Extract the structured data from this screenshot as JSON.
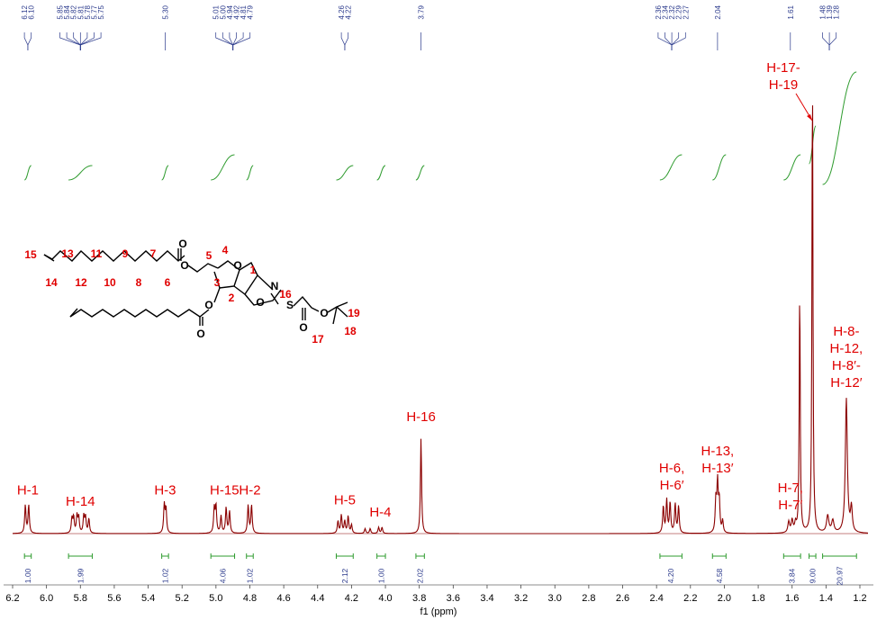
{
  "chart_data": {
    "type": "line",
    "title": "",
    "xlabel": "f1 (ppm)",
    "ylabel": "",
    "xlim": [
      6.2,
      1.17
    ],
    "x_ticks": [
      "6.2",
      "6.0",
      "5.8",
      "5.6",
      "5.4",
      "5.2",
      "5.0",
      "4.8",
      "4.6",
      "4.4",
      "4.2",
      "4.0",
      "3.8",
      "3.6",
      "3.4",
      "3.2",
      "3.0",
      "2.8",
      "2.6",
      "2.4",
      "2.2",
      "2.0",
      "1.8",
      "1.6",
      "1.4",
      "1.2"
    ],
    "x_tick_labels": [
      "6.2",
      "6.0",
      "5.8",
      "5.6",
      "5.4",
      "5.2",
      "5.0",
      "4.8",
      "4.6",
      "4.4",
      "4.2",
      "4.0",
      "3.8",
      "3.6",
      "3.4",
      "3.2",
      "3.0",
      "2.8",
      "2.6",
      "2.4",
      "2.2",
      "2.0",
      "1.8",
      "1.6",
      "1.4",
      "1.2"
    ],
    "colors": {
      "spectrum": "#8b0000",
      "annotation": "#e00000",
      "integral": "#2e9b2e",
      "peak_label": "#2b3a8c"
    },
    "peak_values": [
      "6.12",
      "6.10",
      "5.85",
      "5.84",
      "5.82",
      "5.81",
      "5.78",
      "5.77",
      "5.75",
      "5.30",
      "5.01",
      "5.00",
      "4.94",
      "4.92",
      "4.81",
      "4.79",
      "4.26",
      "4.22",
      "3.79",
      "2.36",
      "2.34",
      "2.32",
      "2.29",
      "2.27",
      "2.04",
      "1.61",
      "1.48",
      "1.39",
      "1.28"
    ],
    "peak_label_groups": [
      {
        "ppm": 6.11,
        "labels": [
          "6.12",
          "6.10"
        ]
      },
      {
        "ppm": 5.8,
        "labels": [
          "5.85",
          "5.84",
          "5.82",
          "5.81",
          "5.78",
          "5.77",
          "5.75"
        ]
      },
      {
        "ppm": 5.3,
        "labels": [
          "5.30"
        ]
      },
      {
        "ppm": 4.9,
        "labels": [
          "5.01",
          "5.00",
          "4.94",
          "4.92",
          "4.81",
          "4.79"
        ]
      },
      {
        "ppm": 4.24,
        "labels": [
          "4.26",
          "4.22"
        ]
      },
      {
        "ppm": 3.79,
        "labels": [
          "3.79"
        ]
      },
      {
        "ppm": 2.31,
        "labels": [
          "2.36",
          "2.34",
          "2.32",
          "2.29",
          "2.27"
        ]
      },
      {
        "ppm": 2.04,
        "labels": [
          "2.04"
        ]
      },
      {
        "ppm": 1.61,
        "labels": [
          "1.61"
        ]
      },
      {
        "ppm": 1.38,
        "labels": [
          "1.48",
          "1.39",
          "1.28"
        ]
      }
    ],
    "integrals": [
      {
        "from": 6.13,
        "to": 6.09,
        "value": "1.00"
      },
      {
        "from": 5.87,
        "to": 5.73,
        "value": "1.99"
      },
      {
        "from": 5.32,
        "to": 5.28,
        "value": "1.02"
      },
      {
        "from": 5.03,
        "to": 4.89,
        "value": "4.06"
      },
      {
        "from": 4.82,
        "to": 4.78,
        "value": "1.02"
      },
      {
        "from": 4.29,
        "to": 4.19,
        "value": "2.12"
      },
      {
        "from": 4.05,
        "to": 4.0,
        "value": "1.00"
      },
      {
        "from": 3.82,
        "to": 3.77,
        "value": "2.02"
      },
      {
        "from": 2.38,
        "to": 2.25,
        "value": "4.20"
      },
      {
        "from": 2.07,
        "to": 1.99,
        "value": "4.58"
      },
      {
        "from": 1.65,
        "to": 1.55,
        "value": "3.84"
      },
      {
        "from": 1.5,
        "to": 1.46,
        "value": "9.00"
      },
      {
        "from": 1.42,
        "to": 1.22,
        "value": "20.97"
      }
    ],
    "peaks": [
      {
        "ppm": 6.125,
        "height": 0.23,
        "width": 0.0045
      },
      {
        "ppm": 6.105,
        "height": 0.23,
        "width": 0.0045
      },
      {
        "ppm": 5.85,
        "height": 0.12,
        "width": 0.0045
      },
      {
        "ppm": 5.84,
        "height": 0.13,
        "width": 0.0045
      },
      {
        "ppm": 5.82,
        "height": 0.14,
        "width": 0.0045
      },
      {
        "ppm": 5.81,
        "height": 0.13,
        "width": 0.0045
      },
      {
        "ppm": 5.78,
        "height": 0.14,
        "width": 0.0045
      },
      {
        "ppm": 5.77,
        "height": 0.13,
        "width": 0.0045
      },
      {
        "ppm": 5.75,
        "height": 0.12,
        "width": 0.0045
      },
      {
        "ppm": 5.305,
        "height": 0.23,
        "width": 0.0045
      },
      {
        "ppm": 5.295,
        "height": 0.2,
        "width": 0.0045
      },
      {
        "ppm": 5.01,
        "height": 0.2,
        "width": 0.0045
      },
      {
        "ppm": 5.0,
        "height": 0.22,
        "width": 0.0045
      },
      {
        "ppm": 4.97,
        "height": 0.14,
        "width": 0.0045
      },
      {
        "ppm": 4.94,
        "height": 0.21,
        "width": 0.0045
      },
      {
        "ppm": 4.92,
        "height": 0.18,
        "width": 0.0045
      },
      {
        "ppm": 4.81,
        "height": 0.23,
        "width": 0.0045
      },
      {
        "ppm": 4.79,
        "height": 0.23,
        "width": 0.0045
      },
      {
        "ppm": 4.28,
        "height": 0.1,
        "width": 0.0045
      },
      {
        "ppm": 4.26,
        "height": 0.15,
        "width": 0.0045
      },
      {
        "ppm": 4.24,
        "height": 0.1,
        "width": 0.0045
      },
      {
        "ppm": 4.22,
        "height": 0.14,
        "width": 0.0045
      },
      {
        "ppm": 4.2,
        "height": 0.07,
        "width": 0.0045
      },
      {
        "ppm": 4.12,
        "height": 0.04,
        "width": 0.0045
      },
      {
        "ppm": 4.09,
        "height": 0.04,
        "width": 0.0045
      },
      {
        "ppm": 4.04,
        "height": 0.05,
        "width": 0.0045
      },
      {
        "ppm": 4.02,
        "height": 0.05,
        "width": 0.0045
      },
      {
        "ppm": 3.79,
        "height": 0.78,
        "width": 0.004
      },
      {
        "ppm": 2.36,
        "height": 0.22,
        "width": 0.0045
      },
      {
        "ppm": 2.34,
        "height": 0.27,
        "width": 0.0045
      },
      {
        "ppm": 2.32,
        "height": 0.25,
        "width": 0.0045
      },
      {
        "ppm": 2.29,
        "height": 0.24,
        "width": 0.0045
      },
      {
        "ppm": 2.27,
        "height": 0.22,
        "width": 0.0045
      },
      {
        "ppm": 2.05,
        "height": 0.26,
        "width": 0.0045
      },
      {
        "ppm": 2.04,
        "height": 0.4,
        "width": 0.0045
      },
      {
        "ppm": 2.03,
        "height": 0.26,
        "width": 0.0045
      },
      {
        "ppm": 2.01,
        "height": 0.1,
        "width": 0.0045
      },
      {
        "ppm": 1.62,
        "height": 0.09,
        "width": 0.006
      },
      {
        "ppm": 1.6,
        "height": 0.1,
        "width": 0.006
      },
      {
        "ppm": 1.58,
        "height": 0.07,
        "width": 0.006
      },
      {
        "ppm": 1.555,
        "height": 2.0,
        "width": 0.0035
      },
      {
        "ppm": 1.48,
        "height": 3.8,
        "width": 0.0035
      },
      {
        "ppm": 1.39,
        "height": 0.14,
        "width": 0.008
      },
      {
        "ppm": 1.36,
        "height": 0.1,
        "width": 0.008
      },
      {
        "ppm": 1.28,
        "height": 1.1,
        "width": 0.007
      },
      {
        "ppm": 1.25,
        "height": 0.2,
        "width": 0.006
      }
    ],
    "annotations": [
      {
        "ppm": 6.11,
        "level": 0.26,
        "lines": [
          "H-1"
        ]
      },
      {
        "ppm": 5.8,
        "level": 0.17,
        "lines": [
          "H-14"
        ]
      },
      {
        "ppm": 5.3,
        "level": 0.26,
        "lines": [
          "H-3"
        ]
      },
      {
        "ppm": 4.95,
        "level": 0.26,
        "lines": [
          "H-15"
        ]
      },
      {
        "ppm": 4.8,
        "level": 0.26,
        "lines": [
          "H-2"
        ]
      },
      {
        "ppm": 4.24,
        "level": 0.18,
        "lines": [
          "H-5"
        ]
      },
      {
        "ppm": 4.03,
        "level": 0.08,
        "lines": [
          "H-4"
        ]
      },
      {
        "ppm": 3.79,
        "level": 0.86,
        "lines": [
          "H-16"
        ]
      },
      {
        "ppm": 2.31,
        "level": 0.3,
        "lines": [
          "H-6,",
          "H-6′"
        ]
      },
      {
        "ppm": 2.04,
        "level": 0.44,
        "lines": [
          "H-13,",
          "H-13′"
        ]
      },
      {
        "ppm": 1.61,
        "level": 0.14,
        "lines": [
          "H-7,",
          "H-7′"
        ]
      },
      {
        "ppm": 1.28,
        "level": 1.14,
        "lines": [
          "H-8-",
          "H-12,",
          "H-8′-",
          "H-12′"
        ]
      },
      {
        "ppm": 1.48,
        "level": 4.02,
        "lines": [
          "H-17-",
          "H-19"
        ],
        "callout": true
      }
    ]
  },
  "molecule": {
    "numbers": [
      "15",
      "13",
      "11",
      "9",
      "7",
      "5",
      "4",
      "1",
      "14",
      "12",
      "10",
      "8",
      "6",
      "3",
      "2",
      "16",
      "19",
      "18",
      "17"
    ],
    "atoms": [
      "O",
      "O",
      "O",
      "N",
      "O",
      "S",
      "O",
      "O",
      "O",
      "O"
    ]
  }
}
